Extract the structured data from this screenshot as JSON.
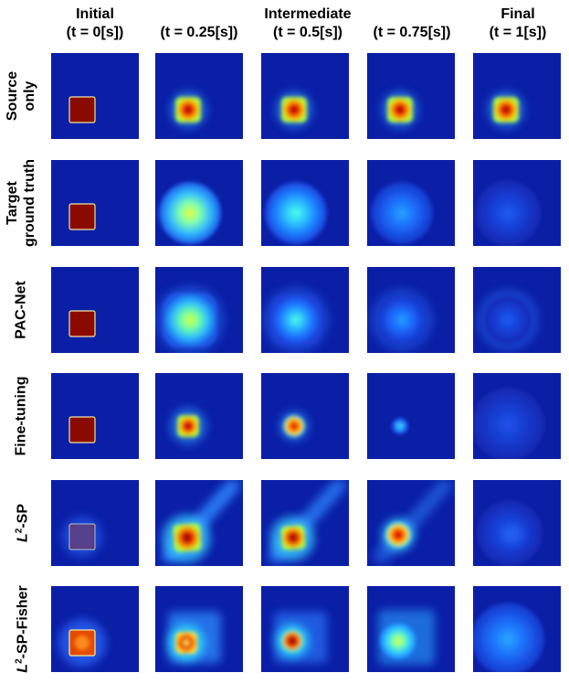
{
  "columns": [
    {
      "line1": "Initial",
      "line2": "(t = 0[s])"
    },
    {
      "line1": "",
      "line2": "(t = 0.25[s])"
    },
    {
      "line1": "Intermediate",
      "line2": "(t = 0.5[s])"
    },
    {
      "line1": "",
      "line2": "(t = 0.75[s])"
    },
    {
      "line1": "Final",
      "line2": "(t = 1[s])"
    }
  ],
  "rows": [
    {
      "line1": "Source",
      "line2": "only"
    },
    {
      "line1": "Target",
      "line2": "ground truth"
    },
    {
      "line1": "PAC-Net",
      "line2": ""
    },
    {
      "line1": "Fine-tuning",
      "line2": ""
    },
    {
      "line1_italic": "L",
      "line1_sup": "2",
      "line1_rest": "-SP",
      "line2": ""
    },
    {
      "line1_italic": "L",
      "line1_sup": "2",
      "line1_rest": "-SP-Fisher",
      "line2": ""
    }
  ],
  "colors": {
    "background": "#0a1ea6",
    "hot": "#8b0a00",
    "outline": "#f0e6a0"
  }
}
